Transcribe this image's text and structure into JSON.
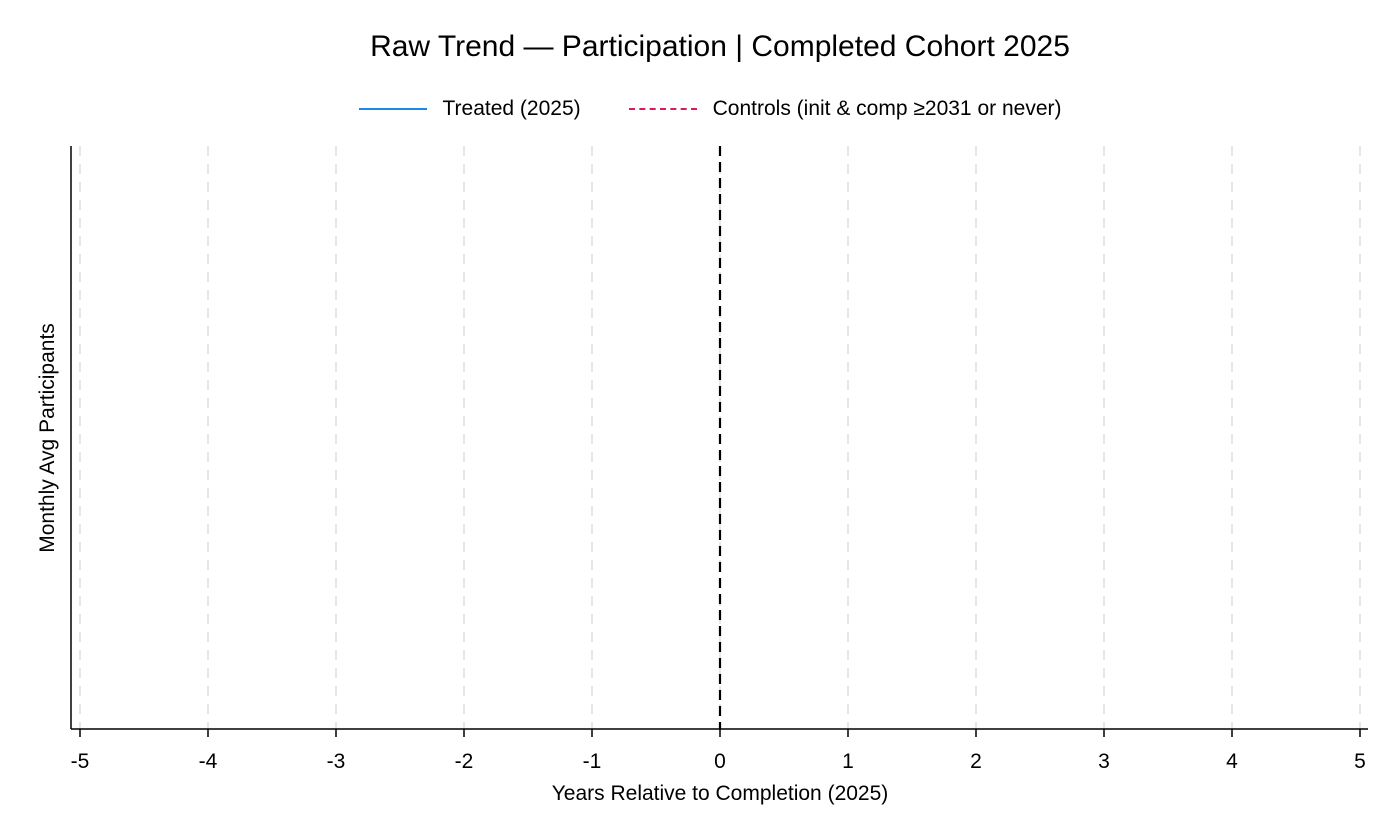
{
  "chart_data": {
    "type": "line",
    "title": "Raw Trend — Participation | Completed Cohort 2025",
    "xlabel": "Years Relative to Completion (2025)",
    "ylabel": "Monthly Avg Participants",
    "x_ticks": [
      -5,
      -4,
      -3,
      -2,
      -1,
      0,
      1,
      2,
      3,
      4,
      5
    ],
    "xlim": [
      -5,
      5
    ],
    "reference_line_x": 0,
    "grid": "vertical dashed",
    "legend_position": "top",
    "series": [
      {
        "name": "Treated (2025)",
        "color": "#1e88e5",
        "style": "solid",
        "x": [],
        "y": []
      },
      {
        "name": "Controls (init & comp ≥2031 or never)",
        "color": "#d81b60",
        "style": "dashed",
        "x": [],
        "y": []
      }
    ]
  }
}
